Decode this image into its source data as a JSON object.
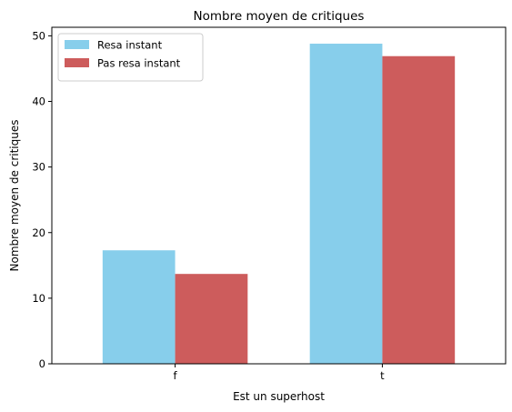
{
  "chart_data": {
    "type": "bar",
    "title": "Nombre moyen de critiques",
    "xlabel": "Est un superhost",
    "ylabel": "Nombre moyen de critiques",
    "categories": [
      "f",
      "t"
    ],
    "series": [
      {
        "name": "Resa instant",
        "color": "#87ceeb",
        "values": [
          17.3,
          48.8
        ]
      },
      {
        "name": "Pas resa instant",
        "color": "#cd5c5c",
        "values": [
          13.7,
          46.9
        ]
      }
    ],
    "ylim": [
      0,
      51.3
    ],
    "yticks": [
      0,
      10,
      20,
      30,
      40,
      50
    ],
    "grid": false,
    "legend": "top-left"
  }
}
